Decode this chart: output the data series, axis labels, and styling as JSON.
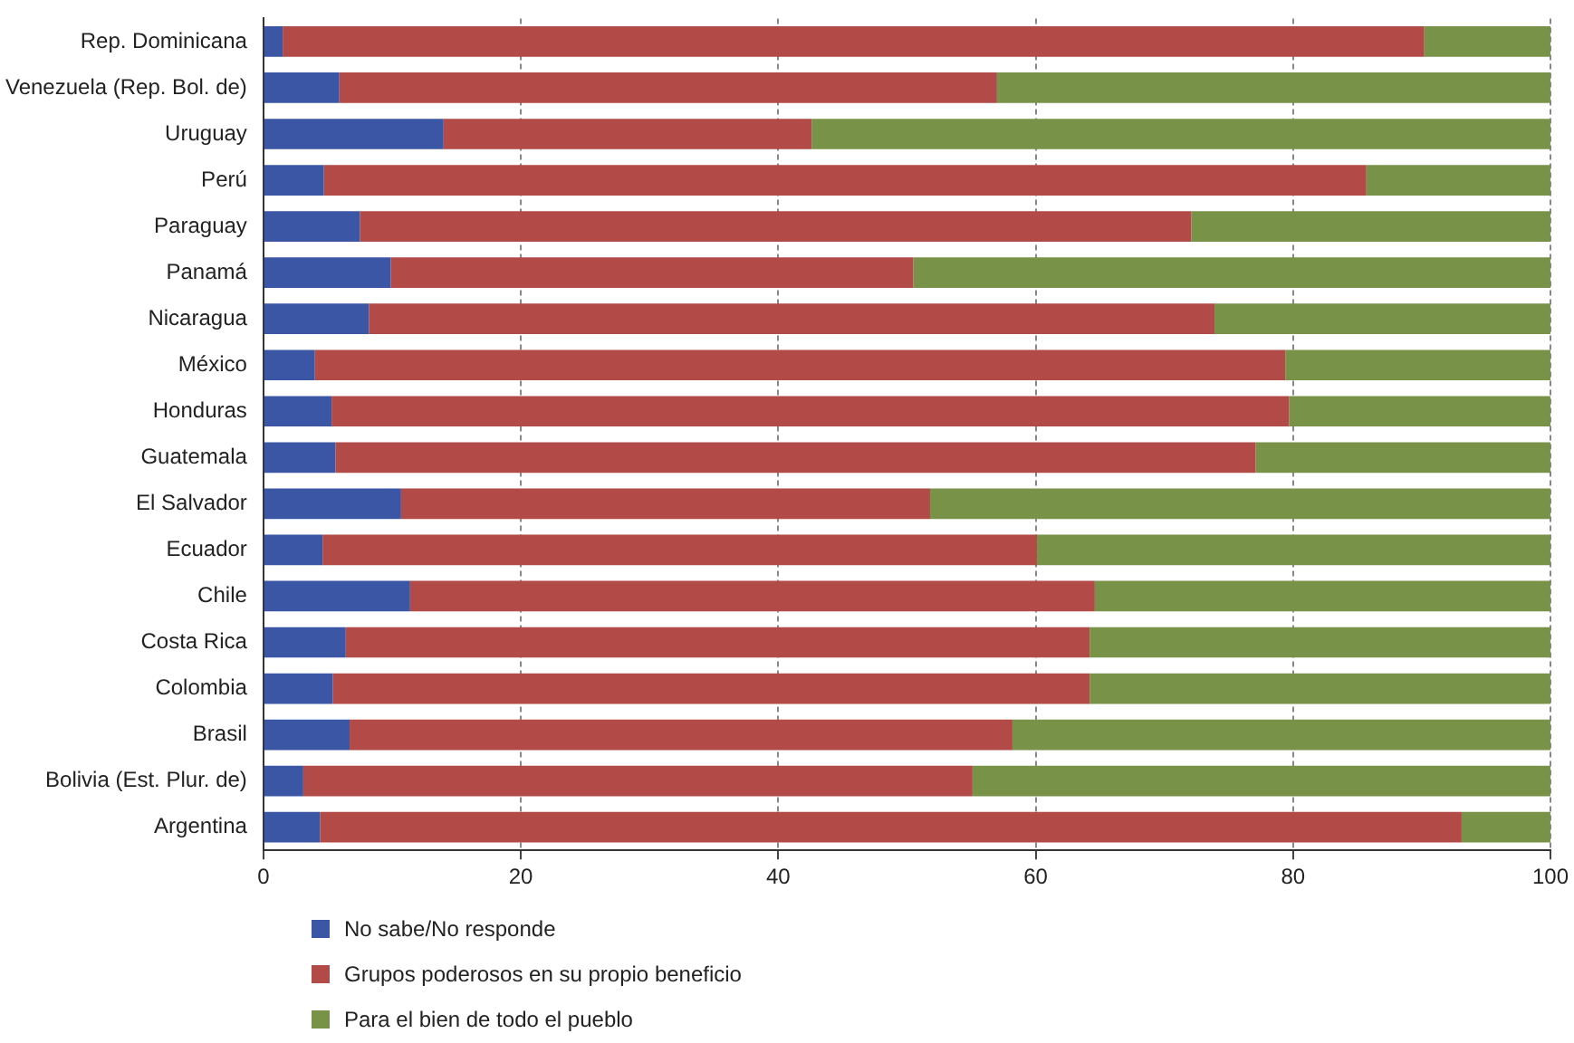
{
  "chart_data": {
    "type": "bar",
    "orientation": "horizontal",
    "stacked": true,
    "categories": [
      "Rep. Dominicana",
      "Venezuela (Rep. Bol. de)",
      "Uruguay",
      "Perú",
      "Paraguay",
      "Panamá",
      "Nicaragua",
      "México",
      "Honduras",
      "Guatemala",
      "El Salvador",
      "Ecuador",
      "Chile",
      "Costa Rica",
      "Colombia",
      "Brasil",
      "Bolivia (Est. Plur. de)",
      "Argentina"
    ],
    "series": [
      {
        "name": "No sabe/No responde",
        "color": "#3c56a6",
        "values": [
          1.5,
          5.9,
          14.0,
          4.7,
          7.5,
          9.9,
          8.2,
          4.0,
          5.3,
          5.6,
          10.7,
          4.6,
          11.4,
          6.4,
          5.4,
          6.7,
          3.1,
          4.4
        ]
      },
      {
        "name": "Grupos poderosos en su propio beneficio",
        "color": "#b24a48",
        "values": [
          88.7,
          51.1,
          28.6,
          81.0,
          64.6,
          40.6,
          65.7,
          75.4,
          74.4,
          71.5,
          41.1,
          55.5,
          53.2,
          57.8,
          58.8,
          51.5,
          52.0,
          88.7
        ]
      },
      {
        "name": "Para el bien de todo el pueblo",
        "color": "#789248",
        "values": [
          9.8,
          43.0,
          57.4,
          14.3,
          27.9,
          49.5,
          26.1,
          20.6,
          20.3,
          22.9,
          48.2,
          39.9,
          35.4,
          35.8,
          35.8,
          41.8,
          44.9,
          6.9
        ]
      }
    ],
    "xlim": [
      0,
      100
    ],
    "xticks": [
      0,
      20,
      40,
      60,
      80,
      100
    ],
    "grid": "x",
    "legend": "bottom"
  }
}
